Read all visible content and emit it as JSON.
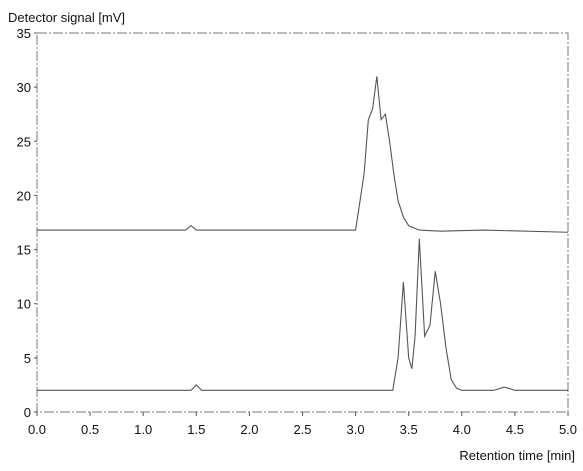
{
  "chart_data": {
    "type": "line",
    "ylabel": "Detector signal [mV]",
    "xlabel": "Retention time [min]",
    "xlim": [
      0,
      5
    ],
    "ylim": [
      0,
      35
    ],
    "xticks": [
      {
        "value": 0,
        "label": "0.0"
      },
      0.5,
      {
        "value": 1,
        "label": "1.0"
      },
      1.5,
      {
        "value": 2,
        "label": "2.0"
      },
      2.5,
      {
        "value": 3,
        "label": "3.0"
      },
      3.5,
      {
        "value": 4,
        "label": "4.0"
      },
      4.5,
      {
        "value": 5,
        "label": "5.0"
      }
    ],
    "yticks": [
      0,
      5,
      10,
      15,
      20,
      25,
      30,
      35
    ],
    "series": [
      {
        "color": "#555555",
        "x": [
          0,
          1.4,
          1.45,
          1.5,
          3.0,
          3.08,
          3.12,
          3.16,
          3.2,
          3.24,
          3.28,
          3.32,
          3.36,
          3.4,
          3.45,
          3.5,
          3.6,
          3.8,
          4.2,
          5.0
        ],
        "values": [
          16.8,
          16.8,
          17.2,
          16.8,
          16.8,
          22,
          27,
          28,
          31,
          27,
          27.5,
          25,
          22,
          19.5,
          18,
          17.2,
          16.8,
          16.7,
          16.8,
          16.6
        ]
      },
      {
        "color": "#555555",
        "x": [
          0,
          1.45,
          1.5,
          1.55,
          3.35,
          3.4,
          3.45,
          3.5,
          3.53,
          3.56,
          3.6,
          3.65,
          3.7,
          3.75,
          3.8,
          3.85,
          3.9,
          3.95,
          4.0,
          4.3,
          4.4,
          4.5,
          5.0
        ],
        "values": [
          2,
          2,
          2.5,
          2,
          2,
          5,
          12,
          5,
          4,
          7,
          16,
          7,
          8,
          13,
          10,
          6,
          3,
          2.2,
          2,
          2,
          2.3,
          2,
          2
        ]
      }
    ]
  }
}
